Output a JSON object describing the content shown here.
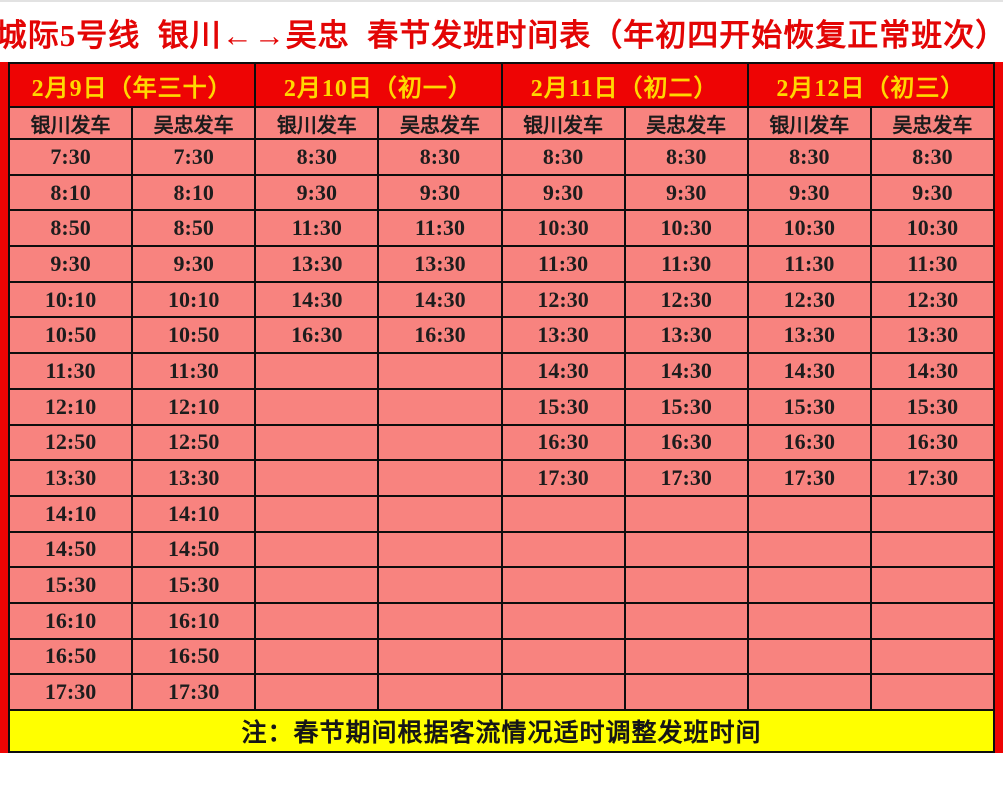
{
  "title": "城际5号线  银川←→吴忠  春节发班时间表（年初四开始恢复正常班次）",
  "table": {
    "day_headers": [
      "2月9日（年三十）",
      "2月10日（初一）",
      "2月11日（初二）",
      "2月12日（初三）"
    ],
    "sub_headers": [
      "银川发车",
      "吴忠发车",
      "银川发车",
      "吴忠发车",
      "银川发车",
      "吴忠发车",
      "银川发车",
      "吴忠发车"
    ],
    "rows": [
      [
        "7:30",
        "7:30",
        "8:30",
        "8:30",
        "8:30",
        "8:30",
        "8:30",
        "8:30"
      ],
      [
        "8:10",
        "8:10",
        "9:30",
        "9:30",
        "9:30",
        "9:30",
        "9:30",
        "9:30"
      ],
      [
        "8:50",
        "8:50",
        "11:30",
        "11:30",
        "10:30",
        "10:30",
        "10:30",
        "10:30"
      ],
      [
        "9:30",
        "9:30",
        "13:30",
        "13:30",
        "11:30",
        "11:30",
        "11:30",
        "11:30"
      ],
      [
        "10:10",
        "10:10",
        "14:30",
        "14:30",
        "12:30",
        "12:30",
        "12:30",
        "12:30"
      ],
      [
        "10:50",
        "10:50",
        "16:30",
        "16:30",
        "13:30",
        "13:30",
        "13:30",
        "13:30"
      ],
      [
        "11:30",
        "11:30",
        "",
        "",
        "14:30",
        "14:30",
        "14:30",
        "14:30"
      ],
      [
        "12:10",
        "12:10",
        "",
        "",
        "15:30",
        "15:30",
        "15:30",
        "15:30"
      ],
      [
        "12:50",
        "12:50",
        "",
        "",
        "16:30",
        "16:30",
        "16:30",
        "16:30"
      ],
      [
        "13:30",
        "13:30",
        "",
        "",
        "17:30",
        "17:30",
        "17:30",
        "17:30"
      ],
      [
        "14:10",
        "14:10",
        "",
        "",
        "",
        "",
        "",
        ""
      ],
      [
        "14:50",
        "14:50",
        "",
        "",
        "",
        "",
        "",
        ""
      ],
      [
        "15:30",
        "15:30",
        "",
        "",
        "",
        "",
        "",
        ""
      ],
      [
        "16:10",
        "16:10",
        "",
        "",
        "",
        "",
        "",
        ""
      ],
      [
        "16:50",
        "16:50",
        "",
        "",
        "",
        "",
        "",
        ""
      ],
      [
        "17:30",
        "17:30",
        "",
        "",
        "",
        "",
        "",
        ""
      ]
    ],
    "note": "注：春节期间根据客流情况适时调整发班时间"
  },
  "colors": {
    "header_red": "#ee0404",
    "header_text_yellow": "#ffd800",
    "cell_pink": "#f8837f",
    "cell_text": "#1d1d1d",
    "title_red": "#e30505",
    "note_yellow": "#ffff00",
    "border_black": "#0d0d0d"
  }
}
